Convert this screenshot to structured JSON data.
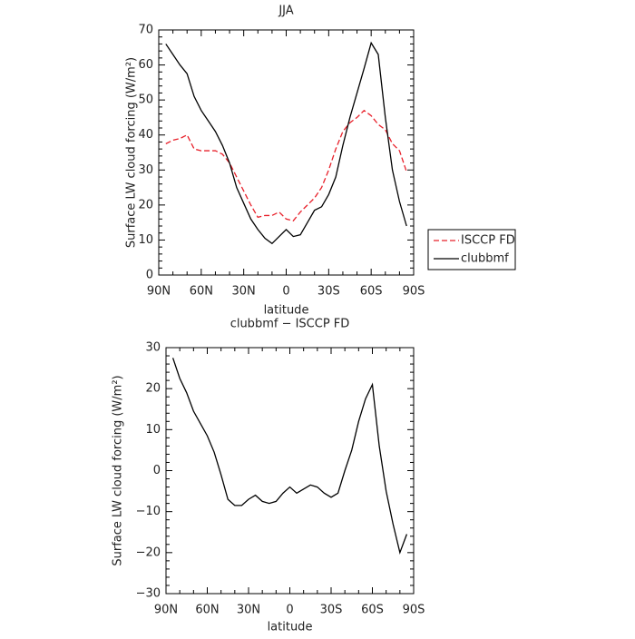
{
  "chart_data": [
    {
      "type": "line",
      "title": "JJA",
      "xlabel": "latitude",
      "ylabel": "Surface LW cloud forcing (W/m²)",
      "x": [
        85,
        80,
        75,
        70,
        65,
        60,
        55,
        50,
        45,
        40,
        35,
        30,
        25,
        20,
        15,
        10,
        5,
        0,
        -5,
        -10,
        -15,
        -20,
        -25,
        -30,
        -35,
        -40,
        -45,
        -50,
        -55,
        -60,
        -65,
        -70,
        -75,
        -80,
        -85
      ],
      "xlim": [
        90,
        -90
      ],
      "xticks": [
        {
          "value": 90,
          "label": "90N"
        },
        {
          "value": 60,
          "label": "60N"
        },
        {
          "value": 30,
          "label": "30N"
        },
        0,
        {
          "value": -30,
          "label": "30S"
        },
        {
          "value": -60,
          "label": "60S"
        },
        {
          "value": -90,
          "label": "90S"
        }
      ],
      "ylim": [
        0,
        70
      ],
      "yticks": [
        0,
        10,
        20,
        30,
        40,
        50,
        60,
        70
      ],
      "legend": "right",
      "series": [
        {
          "name": "ISCCP FD",
          "color": "#e8202a",
          "dashed": true,
          "values": [
            37.5,
            38.5,
            39,
            40,
            36,
            35.5,
            35.5,
            35.5,
            34.5,
            32,
            28,
            24,
            20,
            16.5,
            17,
            17,
            18,
            16,
            15.5,
            18,
            20,
            22,
            25,
            30,
            36,
            41,
            43.5,
            45,
            47,
            45.5,
            43,
            41.5,
            37.5,
            35.5,
            29.5
          ]
        },
        {
          "name": "clubbmf",
          "color": "#000000",
          "dashed": false,
          "values": [
            66,
            63,
            60,
            57.5,
            51,
            47,
            44,
            41,
            37,
            32,
            25,
            20.5,
            16,
            13,
            10.5,
            9,
            11,
            13,
            11,
            11.5,
            15,
            18.5,
            19.5,
            23,
            28,
            37,
            45,
            52,
            59,
            66.3,
            63,
            45,
            30,
            21,
            14
          ]
        }
      ]
    },
    {
      "type": "line",
      "title": "clubbmf − ISCCP FD",
      "xlabel": "latitude",
      "ylabel": "Surface LW cloud forcing (W/m²)",
      "x": [
        85,
        80,
        75,
        70,
        65,
        60,
        55,
        50,
        45,
        40,
        35,
        30,
        25,
        20,
        15,
        10,
        5,
        0,
        -5,
        -10,
        -15,
        -20,
        -25,
        -30,
        -35,
        -40,
        -45,
        -50,
        -55,
        -60,
        -65,
        -70,
        -75,
        -80,
        -85
      ],
      "xlim": [
        90,
        -90
      ],
      "xticks": [
        {
          "value": 90,
          "label": "90N"
        },
        {
          "value": 60,
          "label": "60N"
        },
        {
          "value": 30,
          "label": "30N"
        },
        0,
        {
          "value": -30,
          "label": "30S"
        },
        {
          "value": -60,
          "label": "60S"
        },
        {
          "value": -90,
          "label": "90S"
        }
      ],
      "ylim": [
        -30,
        30
      ],
      "yticks": [
        {
          "value": -30,
          "label": "−30"
        },
        {
          "value": -20,
          "label": "−20"
        },
        {
          "value": -10,
          "label": "−10"
        },
        0,
        10,
        20,
        30
      ],
      "color": "#000000",
      "values": [
        27.5,
        22.5,
        19,
        14.5,
        11.5,
        8.5,
        4.5,
        -1,
        -7,
        -8.5,
        -8.5,
        -7,
        -6,
        -7.5,
        -8,
        -7.5,
        -5.5,
        -4,
        -5.5,
        -4.5,
        -3.5,
        -4,
        -5.5,
        -6.5,
        -5.5,
        0,
        5,
        12,
        17.5,
        21,
        6,
        -5,
        -13,
        -20,
        -15.5
      ]
    }
  ]
}
